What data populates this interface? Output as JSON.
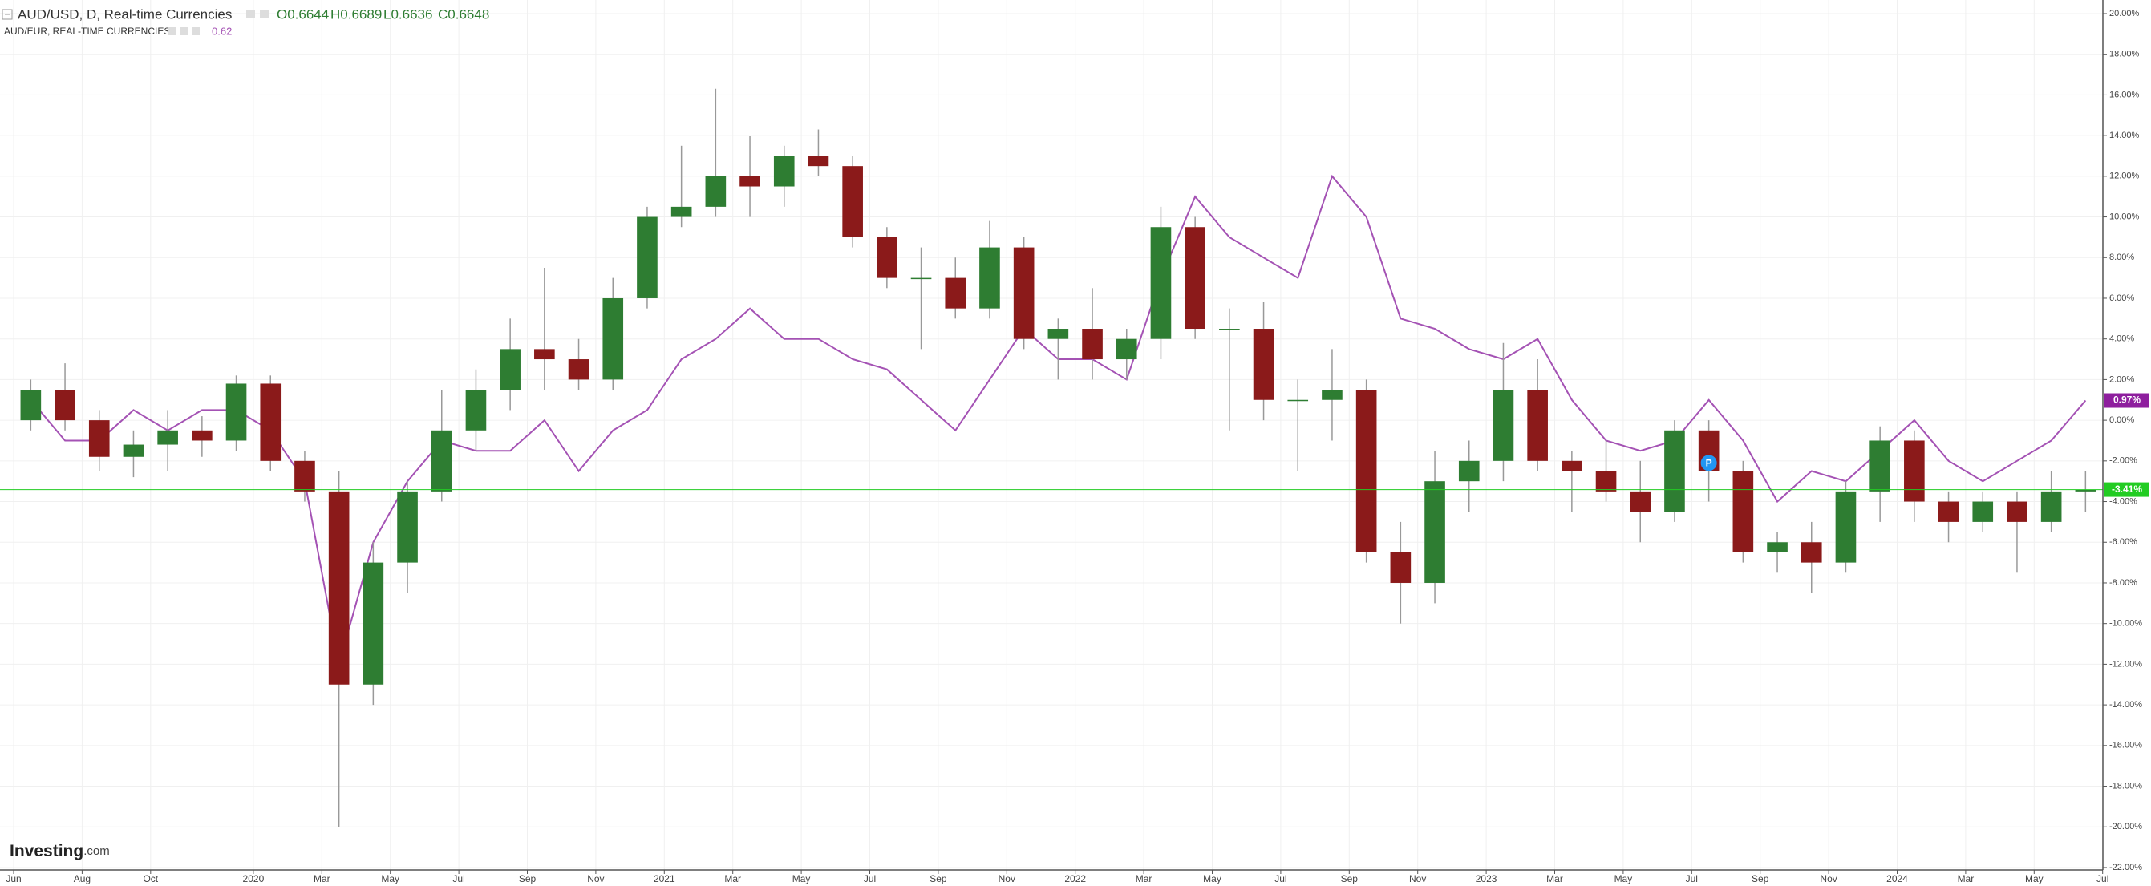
{
  "chart_data": {
    "type": "candlestick",
    "quote": [
      "O0.6644",
      "H0.6689",
      "L0.6636",
      "C0.6648"
    ],
    "compare_value": "0.62",
    "brand": [
      "Investing",
      ".com"
    ],
    "x": [
      "2019-06",
      "2019-07",
      "2019-08",
      "2019-09",
      "2019-10",
      "2019-11",
      "2019-12",
      "2020-01",
      "2020-02",
      "2020-03",
      "2020-04",
      "2020-05",
      "2020-06",
      "2020-07",
      "2020-08",
      "2020-09",
      "2020-10",
      "2020-11",
      "2020-12",
      "2021-01",
      "2021-02",
      "2021-03",
      "2021-04",
      "2021-05",
      "2021-06",
      "2021-07",
      "2021-08",
      "2021-09",
      "2021-10",
      "2021-11",
      "2021-12",
      "2022-01",
      "2022-02",
      "2022-03",
      "2022-04",
      "2022-05",
      "2022-06",
      "2022-07",
      "2022-08",
      "2022-09",
      "2022-10",
      "2022-11",
      "2022-12",
      "2023-01",
      "2023-02",
      "2023-03",
      "2023-04",
      "2023-05",
      "2023-06",
      "2023-07",
      "2023-08",
      "2023-09",
      "2023-10",
      "2023-11",
      "2023-12",
      "2024-01",
      "2024-02",
      "2024-03",
      "2024-04",
      "2024-05",
      "2024-06"
    ],
    "series": [
      {
        "name": "AUD/USD, D, Real-time Currencies",
        "type": "candlestick",
        "up_color": "#2e7d32",
        "down_color": "#8b1a1a",
        "wick_color": "#999999",
        "open": [
          0,
          1.5,
          0,
          -1.8,
          -1.2,
          -0.5,
          -1.0,
          1.8,
          -2.0,
          -3.5,
          -13,
          -7,
          -3.5,
          -0.5,
          1.5,
          3.5,
          3,
          2,
          6,
          10,
          10.5,
          12,
          11.5,
          13,
          12.5,
          9,
          7,
          7,
          5.5,
          8.5,
          4,
          4.5,
          3,
          4,
          9.5,
          4.5,
          4.5,
          1,
          1,
          1.5,
          -6.5,
          -8,
          -3,
          -2,
          1.5,
          -2,
          -2.5,
          -3.5,
          -4.5,
          -0.5,
          -2.5,
          -6.5,
          -6,
          -7,
          -3.5,
          -1,
          -4,
          -5,
          -4,
          -5,
          -3.5
        ],
        "high": [
          2,
          2.8,
          0.5,
          -0.5,
          0.5,
          0.2,
          2.2,
          2.2,
          -1.5,
          -2.5,
          -6,
          -3,
          1.5,
          2.5,
          5,
          7.5,
          4,
          7,
          10.5,
          13.5,
          16.3,
          14,
          13.5,
          14.3,
          13,
          9.5,
          8.5,
          8,
          9.8,
          9,
          5,
          6.5,
          4.5,
          10.5,
          10,
          5.5,
          5.8,
          2,
          3.5,
          2,
          -5,
          -1.5,
          -1,
          3.8,
          3,
          -1.5,
          -1,
          -2,
          0,
          0,
          -2,
          -5.5,
          -5,
          -3,
          -0.3,
          -0.5,
          -3.5,
          -3.5,
          -3.5,
          -2.5,
          -2.5
        ],
        "low": [
          -0.5,
          -0.5,
          -2.5,
          -2.8,
          -2.5,
          -1.8,
          -1.5,
          -2.5,
          -4,
          -20,
          -14,
          -8.5,
          -4,
          -1.5,
          0.5,
          1.5,
          1.5,
          1.5,
          5.5,
          9.5,
          10,
          10,
          10.5,
          12,
          8.5,
          6.5,
          3.5,
          5,
          5,
          3.5,
          2,
          2,
          2,
          3,
          4,
          -0.5,
          0,
          -2.5,
          -1,
          -7,
          -10,
          -9,
          -4.5,
          -3,
          -2.5,
          -4.5,
          -4,
          -6,
          -5,
          -4,
          -7,
          -7.5,
          -8.5,
          -7.5,
          -5,
          -5,
          -6,
          -5.5,
          -7.5,
          -5.5,
          -4.5
        ],
        "close": [
          1.5,
          0,
          -1.8,
          -1.2,
          -0.5,
          -1.0,
          1.8,
          -2.0,
          -3.5,
          -13,
          -7,
          -3.5,
          -0.5,
          1.5,
          3.5,
          3,
          2,
          6,
          10,
          10.5,
          12,
          11.5,
          13,
          12.5,
          9,
          7,
          7,
          5.5,
          8.5,
          4,
          4.5,
          3,
          4,
          9.5,
          4.5,
          4.5,
          1,
          1,
          1.5,
          -6.5,
          -8,
          -3,
          -2,
          1.5,
          -2,
          -2.5,
          -3.5,
          -4.5,
          -0.5,
          -2.5,
          -6.5,
          -6,
          -7,
          -3.5,
          -1,
          -4,
          -5,
          -4,
          -5,
          -3.5,
          -3.41
        ]
      },
      {
        "name": "AUD/EUR, REAL-TIME CURRENCIES",
        "type": "line",
        "color": "#a452b4",
        "values": [
          1,
          -1,
          -1,
          0.5,
          -0.5,
          0.5,
          0.5,
          -0.5,
          -3,
          -12,
          -6,
          -3,
          -1,
          -1.5,
          -1.5,
          0,
          -2.5,
          -0.5,
          0.5,
          3,
          4,
          5.5,
          4,
          4,
          3,
          2.5,
          1,
          -0.5,
          2,
          4.5,
          3,
          3,
          2,
          7,
          11,
          9,
          8,
          7,
          12,
          10,
          5,
          4.5,
          3.5,
          3,
          4,
          1,
          -1,
          -1.5,
          -1,
          1,
          -1,
          -4,
          -2.5,
          -3,
          -1.5,
          0,
          -2,
          -3,
          -2,
          -1,
          0.97
        ]
      }
    ],
    "last_values": [
      {
        "value": 0.97,
        "label": "0.97%",
        "color": "#8e1e9e"
      },
      {
        "value": -3.41,
        "label": "-3.41%",
        "color": "#22cc22"
      }
    ],
    "annotation": {
      "x": "2023-07",
      "value": -2.1,
      "label": "P",
      "color": "#2196f3"
    },
    "ylim": [
      -22.12,
      20.67
    ],
    "yticks": [
      {
        "value": 20,
        "label": "20.00%"
      },
      {
        "value": 18,
        "label": "18.00%"
      },
      {
        "value": 16,
        "label": "16.00%"
      },
      {
        "value": 14,
        "label": "14.00%"
      },
      {
        "value": 12,
        "label": "12.00%"
      },
      {
        "value": 10,
        "label": "10.00%"
      },
      {
        "value": 8,
        "label": "8.00%"
      },
      {
        "value": 6,
        "label": "6.00%"
      },
      {
        "value": 4,
        "label": "4.00%"
      },
      {
        "value": 2,
        "label": "2.00%"
      },
      {
        "value": 0,
        "label": "0.00%"
      },
      {
        "value": -2,
        "label": "-2.00%"
      },
      {
        "value": -4,
        "label": "-4.00%"
      },
      {
        "value": -6,
        "label": "-6.00%"
      },
      {
        "value": -8,
        "label": "-8.00%"
      },
      {
        "value": -10,
        "label": "-10.00%"
      },
      {
        "value": -12,
        "label": "-12.00%"
      },
      {
        "value": -14,
        "label": "-14.00%"
      },
      {
        "value": -16,
        "label": "-16.00%"
      },
      {
        "value": -18,
        "label": "-18.00%"
      },
      {
        "value": -20,
        "label": "-20.00%"
      },
      {
        "value": -22,
        "label": "-22.00%"
      }
    ],
    "xticks": [
      {
        "value": "2019-06",
        "label": "Jun"
      },
      {
        "value": "2019-08",
        "label": "Aug"
      },
      {
        "value": "2019-10",
        "label": "Oct"
      },
      {
        "value": "2020-01",
        "label": "2020"
      },
      {
        "value": "2020-03",
        "label": "Mar"
      },
      {
        "value": "2020-05",
        "label": "May"
      },
      {
        "value": "2020-07",
        "label": "Jul"
      },
      {
        "value": "2020-09",
        "label": "Sep"
      },
      {
        "value": "2020-11",
        "label": "Nov"
      },
      {
        "value": "2021-01",
        "label": "2021"
      },
      {
        "value": "2021-03",
        "label": "Mar"
      },
      {
        "value": "2021-05",
        "label": "May"
      },
      {
        "value": "2021-07",
        "label": "Jul"
      },
      {
        "value": "2021-09",
        "label": "Sep"
      },
      {
        "value": "2021-11",
        "label": "Nov"
      },
      {
        "value": "2022-01",
        "label": "2022"
      },
      {
        "value": "2022-03",
        "label": "Mar"
      },
      {
        "value": "2022-05",
        "label": "May"
      },
      {
        "value": "2022-07",
        "label": "Jul"
      },
      {
        "value": "2022-09",
        "label": "Sep"
      },
      {
        "value": "2022-11",
        "label": "Nov"
      },
      {
        "value": "2023-01",
        "label": "2023"
      },
      {
        "value": "2023-03",
        "label": "Mar"
      },
      {
        "value": "2023-05",
        "label": "May"
      },
      {
        "value": "2023-07",
        "label": "Jul"
      },
      {
        "value": "2023-09",
        "label": "Sep"
      },
      {
        "value": "2023-11",
        "label": "Nov"
      },
      {
        "value": "2024-01",
        "label": "2024"
      },
      {
        "value": "2024-03",
        "label": "Mar"
      },
      {
        "value": "2024-05",
        "label": "May"
      },
      {
        "value": "2024-07",
        "label": "Jul"
      }
    ],
    "grid": true
  }
}
